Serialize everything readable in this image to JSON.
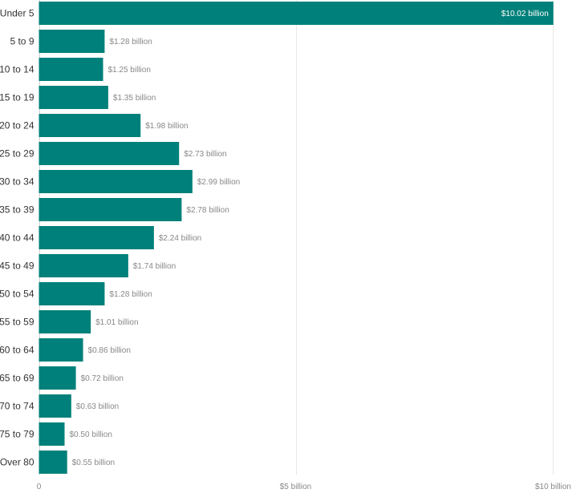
{
  "chart_data": {
    "type": "bar",
    "orientation": "horizontal",
    "categories": [
      "Under 5",
      "5 to 9",
      "10 to 14",
      "15 to 19",
      "20 to 24",
      "25 to 29",
      "30 to 34",
      "35 to 39",
      "40 to 44",
      "45 to 49",
      "50 to 54",
      "55 to 59",
      "60 to 64",
      "65 to 69",
      "70 to 74",
      "75 to 79",
      "Over 80"
    ],
    "values": [
      10.02,
      1.28,
      1.25,
      1.35,
      1.98,
      2.73,
      2.99,
      2.78,
      2.24,
      1.74,
      1.28,
      1.01,
      0.86,
      0.72,
      0.63,
      0.5,
      0.55
    ],
    "value_labels": [
      "$10.02 billion",
      "$1.28 billion",
      "$1.25 billion",
      "$1.35 billion",
      "$1.98 billion",
      "$2.73 billion",
      "$2.99 billion",
      "$2.78 billion",
      "$2.24 billion",
      "$1.74 billion",
      "$1.28 billion",
      "$1.01 billion",
      "$0.86 billion",
      "$0.72 billion",
      "$0.63 billion",
      "$0.50 billion",
      "$0.55 billion"
    ],
    "x_ticks": [
      {
        "value": 0,
        "label": "0"
      },
      {
        "value": 5,
        "label": "$5 billion"
      },
      {
        "value": 10,
        "label": "$10 billion"
      }
    ],
    "xlim": [
      0,
      10
    ],
    "grid": true,
    "colors": {
      "bar": "#00807a",
      "grid": "#e8e8e8",
      "axis": "#cccccc"
    }
  }
}
